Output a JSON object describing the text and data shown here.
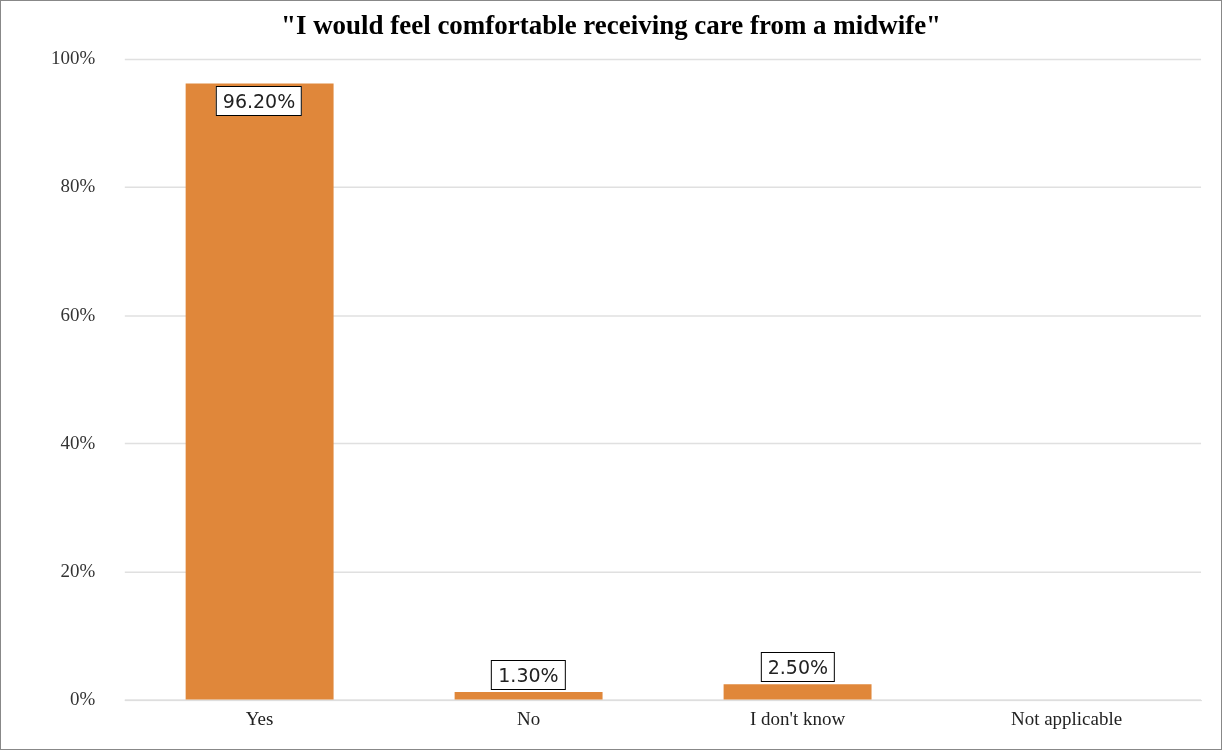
{
  "chart_data": {
    "type": "bar",
    "title": "\"I would feel comfortable receiving care from a midwife\"",
    "categories": [
      "Yes",
      "No",
      "I don't know",
      "Not applicable"
    ],
    "values": [
      96.2,
      1.3,
      2.5,
      null
    ],
    "value_labels": [
      "96.20%",
      "1.30%",
      "2.50%",
      null
    ],
    "color": "#e0873a",
    "ylim": [
      0,
      100
    ],
    "yticks": [
      {
        "value": 0,
        "label": "0%"
      },
      {
        "value": 20,
        "label": "20%"
      },
      {
        "value": 40,
        "label": "40%"
      },
      {
        "value": 60,
        "label": "60%"
      },
      {
        "value": 80,
        "label": "80%"
      },
      {
        "value": 100,
        "label": "100%"
      }
    ],
    "grid": "y",
    "legend": false
  }
}
